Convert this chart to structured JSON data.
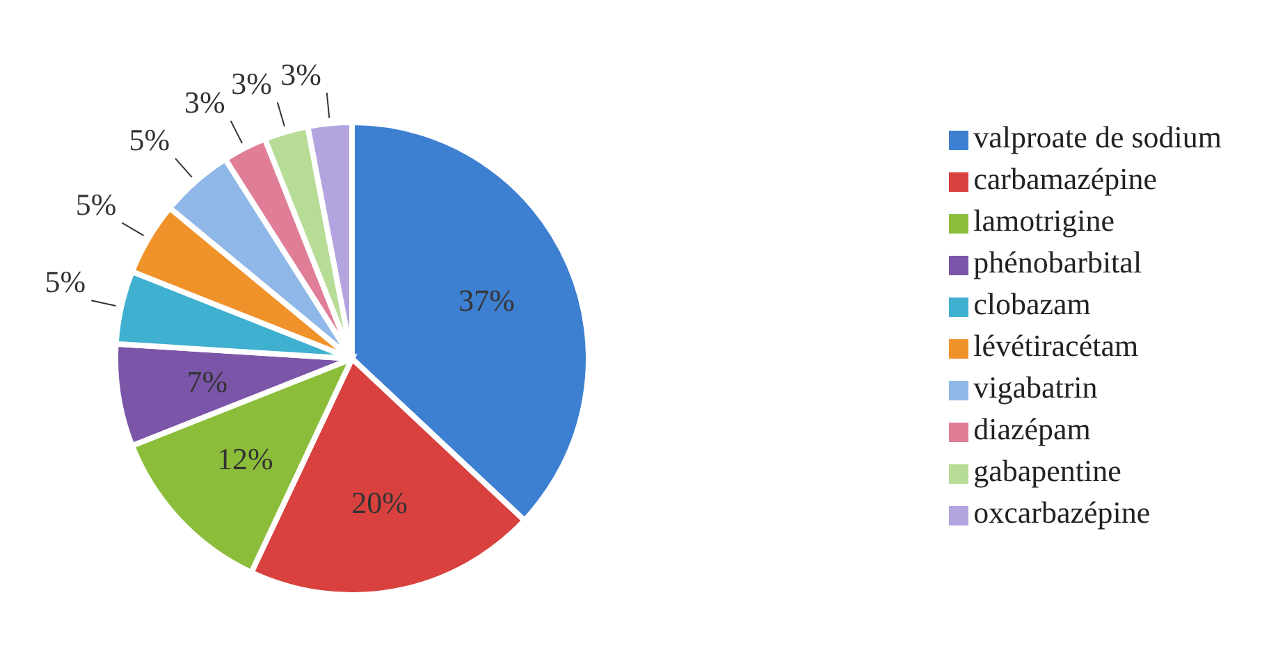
{
  "chart_data": {
    "type": "pie",
    "categories": [
      "valproate de sodium",
      "carbamazépine",
      "lamotrigine",
      "phénobarbital",
      "clobazam",
      "lévétiracétam",
      "vigabatrin",
      "diazépam",
      "gabapentine",
      "oxcarbazépine"
    ],
    "values": [
      37,
      20,
      12,
      7,
      5,
      5,
      5,
      3,
      3,
      3
    ],
    "value_labels": [
      "37%",
      "20%",
      "12%",
      "7%",
      "5%",
      "5%",
      "5%",
      "3%",
      "3%",
      "3%"
    ],
    "colors": [
      "#3d7fd0",
      "#d9413f",
      "#8bbd3a",
      "#7b55a8",
      "#3fb0cf",
      "#f0922a",
      "#8fb8e8",
      "#e07e98",
      "#b6dc96",
      "#b3a3de"
    ],
    "legend": "right"
  }
}
